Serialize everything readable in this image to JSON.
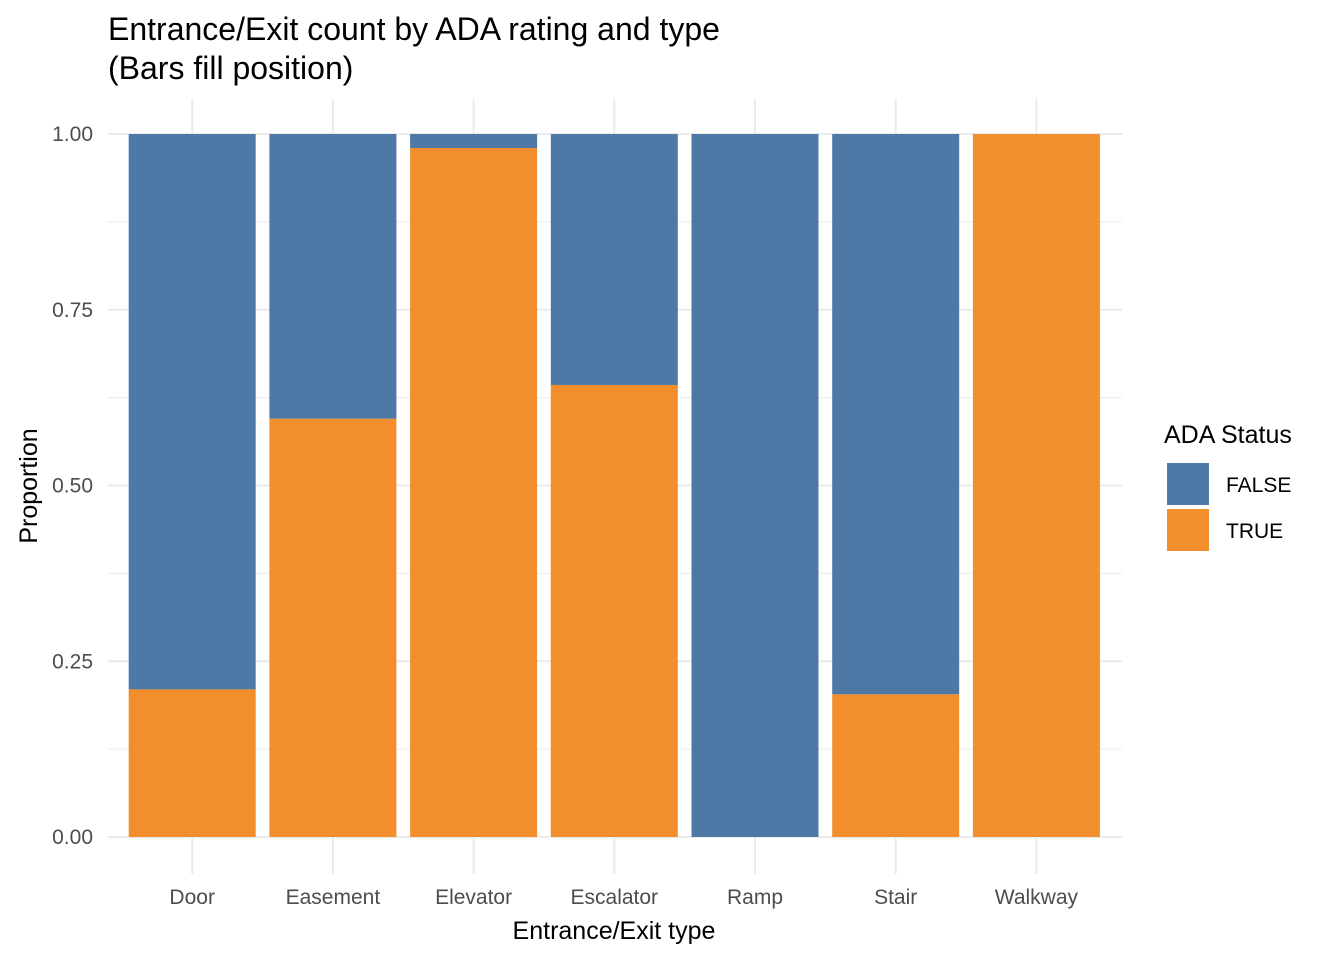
{
  "chart_data": {
    "type": "bar",
    "stacked": "fill",
    "title": "Entrance/Exit count by ADA rating and type",
    "subtitle": "(Bars fill position)",
    "xlabel": "Entrance/Exit type",
    "ylabel": "Proportion",
    "categories": [
      "Door",
      "Easement",
      "Elevator",
      "Escalator",
      "Ramp",
      "Stair",
      "Walkway"
    ],
    "series": [
      {
        "name": "FALSE",
        "color": "#4E79A7",
        "values": [
          0.79,
          0.405,
          0.02,
          0.357,
          1.0,
          0.797,
          0.0
        ]
      },
      {
        "name": "TRUE",
        "color": "#F28E2B",
        "values": [
          0.21,
          0.595,
          0.98,
          0.643,
          0.0,
          0.203,
          1.0
        ]
      }
    ],
    "ylim": [
      0,
      1
    ],
    "yticks": [
      0,
      0.25,
      0.5,
      0.75,
      1.0
    ],
    "ytick_labels": [
      "0.00",
      "0.25",
      "0.50",
      "0.75",
      "1.00"
    ],
    "grid": true,
    "legend": {
      "title": "ADA Status",
      "position": "right",
      "entries": [
        "FALSE",
        "TRUE"
      ]
    }
  }
}
